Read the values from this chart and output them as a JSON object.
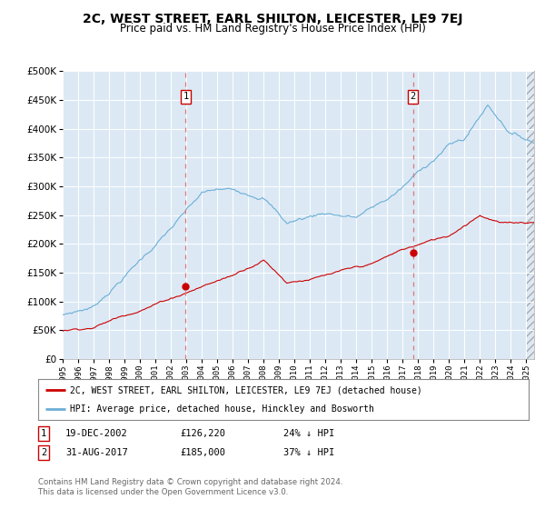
{
  "title": "2C, WEST STREET, EARL SHILTON, LEICESTER, LE9 7EJ",
  "subtitle": "Price paid vs. HM Land Registry's House Price Index (HPI)",
  "fig_bg_color": "#ffffff",
  "plot_bg_color": "#dce9f5",
  "hpi_color": "#6baed6",
  "price_color": "#cc0000",
  "vline_color": "#e06060",
  "ylim": [
    0,
    500000
  ],
  "yticks": [
    0,
    50000,
    100000,
    150000,
    200000,
    250000,
    300000,
    350000,
    400000,
    450000,
    500000
  ],
  "sale1_x": 2002.96,
  "sale1_price": 126220,
  "sale2_x": 2017.66,
  "sale2_price": 185000,
  "legend_line1": "2C, WEST STREET, EARL SHILTON, LEICESTER, LE9 7EJ (detached house)",
  "legend_line2": "HPI: Average price, detached house, Hinckley and Bosworth",
  "table_row1": [
    "1",
    "19-DEC-2002",
    "£126,220",
    "24% ↓ HPI"
  ],
  "table_row2": [
    "2",
    "31-AUG-2017",
    "£185,000",
    "37% ↓ HPI"
  ],
  "footnote": "Contains HM Land Registry data © Crown copyright and database right 2024.\nThis data is licensed under the Open Government Licence v3.0.",
  "title_fontsize": 10,
  "subtitle_fontsize": 8.5
}
